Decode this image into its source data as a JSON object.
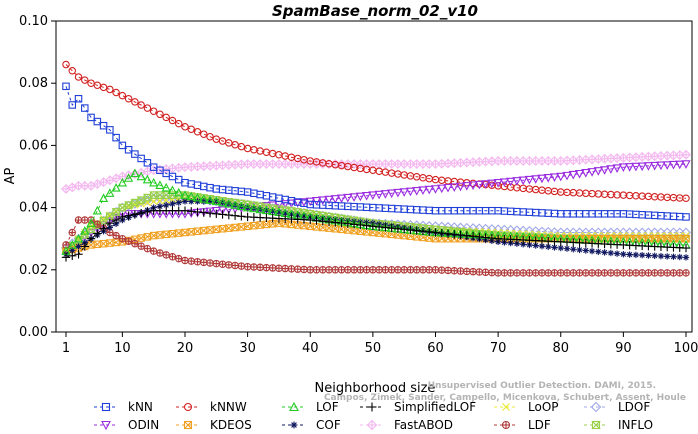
{
  "chart_data": {
    "type": "line",
    "title": "SpamBase_norm_02_v10",
    "xlabel": "Neighborhood size",
    "ylabel": "AP",
    "xlim": [
      1,
      100
    ],
    "ylim": [
      0.0,
      0.1
    ],
    "x_ticks": [
      1,
      10,
      20,
      30,
      40,
      50,
      60,
      70,
      80,
      90,
      100
    ],
    "y_ticks": [
      "0.00",
      "0.02",
      "0.04",
      "0.06",
      "0.08",
      "0.10"
    ],
    "grid": false,
    "legend_position": "bottom",
    "series": [
      {
        "name": "kNN",
        "color": "#1f3fd8",
        "marker": "square",
        "points": [
          [
            1,
            0.079
          ],
          [
            2,
            0.073
          ],
          [
            3,
            0.075
          ],
          [
            5,
            0.069
          ],
          [
            8,
            0.065
          ],
          [
            10,
            0.06
          ],
          [
            15,
            0.053
          ],
          [
            20,
            0.048
          ],
          [
            25,
            0.046
          ],
          [
            30,
            0.045
          ],
          [
            35,
            0.043
          ],
          [
            40,
            0.041
          ],
          [
            50,
            0.04
          ],
          [
            60,
            0.039
          ],
          [
            70,
            0.039
          ],
          [
            80,
            0.038
          ],
          [
            90,
            0.038
          ],
          [
            100,
            0.037
          ]
        ]
      },
      {
        "name": "kNNW",
        "color": "#d22020",
        "marker": "circle",
        "points": [
          [
            1,
            0.086
          ],
          [
            3,
            0.082
          ],
          [
            5,
            0.08
          ],
          [
            8,
            0.078
          ],
          [
            10,
            0.076
          ],
          [
            15,
            0.071
          ],
          [
            20,
            0.066
          ],
          [
            25,
            0.062
          ],
          [
            30,
            0.059
          ],
          [
            40,
            0.055
          ],
          [
            50,
            0.052
          ],
          [
            60,
            0.049
          ],
          [
            70,
            0.047
          ],
          [
            80,
            0.045
          ],
          [
            90,
            0.044
          ],
          [
            100,
            0.043
          ]
        ]
      },
      {
        "name": "LOF",
        "color": "#22cc22",
        "marker": "triangle-up",
        "points": [
          [
            1,
            0.026
          ],
          [
            3,
            0.03
          ],
          [
            5,
            0.035
          ],
          [
            7,
            0.043
          ],
          [
            10,
            0.048
          ],
          [
            12,
            0.051
          ],
          [
            15,
            0.048
          ],
          [
            20,
            0.044
          ],
          [
            25,
            0.042
          ],
          [
            30,
            0.04
          ],
          [
            40,
            0.037
          ],
          [
            50,
            0.034
          ],
          [
            60,
            0.032
          ],
          [
            70,
            0.031
          ],
          [
            80,
            0.03
          ],
          [
            90,
            0.029
          ],
          [
            100,
            0.028
          ]
        ]
      },
      {
        "name": "SimplifiedLOF",
        "color": "#000000",
        "marker": "plus",
        "points": [
          [
            1,
            0.024
          ],
          [
            3,
            0.025
          ],
          [
            5,
            0.03
          ],
          [
            8,
            0.035
          ],
          [
            10,
            0.037
          ],
          [
            15,
            0.039
          ],
          [
            20,
            0.039
          ],
          [
            25,
            0.038
          ],
          [
            30,
            0.037
          ],
          [
            40,
            0.036
          ],
          [
            50,
            0.034
          ],
          [
            60,
            0.032
          ],
          [
            70,
            0.03
          ],
          [
            80,
            0.029
          ],
          [
            90,
            0.028
          ],
          [
            100,
            0.027
          ]
        ]
      },
      {
        "name": "LoOP",
        "color": "#e8e830",
        "marker": "cross",
        "points": [
          [
            1,
            0.026
          ],
          [
            5,
            0.034
          ],
          [
            10,
            0.04
          ],
          [
            15,
            0.042
          ],
          [
            20,
            0.043
          ],
          [
            30,
            0.041
          ],
          [
            40,
            0.038
          ],
          [
            50,
            0.035
          ],
          [
            60,
            0.033
          ],
          [
            70,
            0.032
          ],
          [
            80,
            0.031
          ],
          [
            90,
            0.031
          ],
          [
            100,
            0.031
          ]
        ]
      },
      {
        "name": "LDOF",
        "color": "#a0a8e8",
        "marker": "diamond",
        "points": [
          [
            1,
            0.027
          ],
          [
            5,
            0.033
          ],
          [
            10,
            0.04
          ],
          [
            15,
            0.043
          ],
          [
            20,
            0.043
          ],
          [
            30,
            0.041
          ],
          [
            40,
            0.038
          ],
          [
            50,
            0.035
          ],
          [
            60,
            0.034
          ],
          [
            70,
            0.033
          ],
          [
            80,
            0.032
          ],
          [
            90,
            0.032
          ],
          [
            100,
            0.032
          ]
        ]
      },
      {
        "name": "ODIN",
        "color": "#9a2be0",
        "marker": "triangle-down",
        "points": [
          [
            1,
            0.026
          ],
          [
            5,
            0.032
          ],
          [
            10,
            0.038
          ],
          [
            15,
            0.038
          ],
          [
            20,
            0.038
          ],
          [
            25,
            0.039
          ],
          [
            30,
            0.04
          ],
          [
            40,
            0.042
          ],
          [
            50,
            0.044
          ],
          [
            60,
            0.046
          ],
          [
            70,
            0.048
          ],
          [
            80,
            0.05
          ],
          [
            90,
            0.053
          ],
          [
            100,
            0.054
          ]
        ]
      },
      {
        "name": "KDEOS",
        "color": "#f0a020",
        "marker": "square-x",
        "points": [
          [
            1,
            0.026
          ],
          [
            5,
            0.028
          ],
          [
            10,
            0.029
          ],
          [
            15,
            0.031
          ],
          [
            20,
            0.032
          ],
          [
            30,
            0.034
          ],
          [
            35,
            0.035
          ],
          [
            40,
            0.034
          ],
          [
            50,
            0.032
          ],
          [
            60,
            0.03
          ],
          [
            70,
            0.03
          ],
          [
            80,
            0.03
          ],
          [
            90,
            0.03
          ],
          [
            100,
            0.03
          ]
        ]
      },
      {
        "name": "COF",
        "color": "#101860",
        "marker": "star",
        "points": [
          [
            1,
            0.025
          ],
          [
            5,
            0.03
          ],
          [
            10,
            0.036
          ],
          [
            15,
            0.04
          ],
          [
            20,
            0.042
          ],
          [
            25,
            0.042
          ],
          [
            30,
            0.04
          ],
          [
            40,
            0.037
          ],
          [
            50,
            0.035
          ],
          [
            60,
            0.032
          ],
          [
            70,
            0.029
          ],
          [
            80,
            0.027
          ],
          [
            90,
            0.025
          ],
          [
            100,
            0.024
          ]
        ]
      },
      {
        "name": "FastABOD",
        "color": "#f4b8f0",
        "marker": "diamond-plus",
        "points": [
          [
            1,
            0.046
          ],
          [
            3,
            0.047
          ],
          [
            5,
            0.047
          ],
          [
            10,
            0.05
          ],
          [
            15,
            0.052
          ],
          [
            20,
            0.053
          ],
          [
            30,
            0.054
          ],
          [
            40,
            0.054
          ],
          [
            50,
            0.054
          ],
          [
            60,
            0.054
          ],
          [
            70,
            0.055
          ],
          [
            80,
            0.055
          ],
          [
            90,
            0.056
          ],
          [
            100,
            0.057
          ]
        ]
      },
      {
        "name": "LDF",
        "color": "#b03838",
        "marker": "circle-plus",
        "points": [
          [
            1,
            0.028
          ],
          [
            3,
            0.036
          ],
          [
            5,
            0.036
          ],
          [
            8,
            0.032
          ],
          [
            10,
            0.03
          ],
          [
            15,
            0.026
          ],
          [
            20,
            0.023
          ],
          [
            25,
            0.022
          ],
          [
            30,
            0.021
          ],
          [
            40,
            0.02
          ],
          [
            50,
            0.02
          ],
          [
            60,
            0.02
          ],
          [
            70,
            0.019
          ],
          [
            80,
            0.019
          ],
          [
            90,
            0.019
          ],
          [
            100,
            0.019
          ]
        ]
      },
      {
        "name": "INFLO",
        "color": "#98d048",
        "marker": "hourglass",
        "points": [
          [
            1,
            0.026
          ],
          [
            5,
            0.033
          ],
          [
            10,
            0.04
          ],
          [
            15,
            0.044
          ],
          [
            20,
            0.044
          ],
          [
            30,
            0.041
          ],
          [
            40,
            0.038
          ],
          [
            50,
            0.035
          ],
          [
            60,
            0.033
          ],
          [
            70,
            0.031
          ],
          [
            80,
            0.03
          ],
          [
            90,
            0.03
          ],
          [
            100,
            0.03
          ]
        ]
      }
    ],
    "watermark": [
      "Campos, Zimek, Sander, Campello, Micenkova, Schubert, Assent, Houle",
      "Unsupervised Outlier Detection. DAMI, 2015."
    ]
  }
}
